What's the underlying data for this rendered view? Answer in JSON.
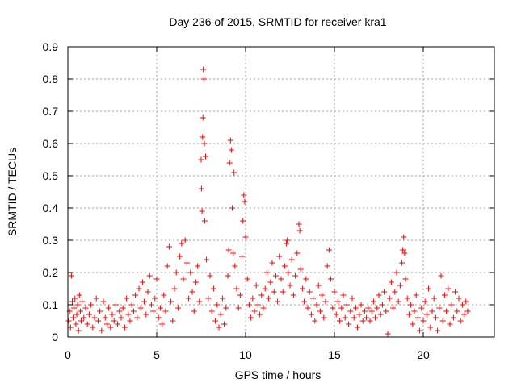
{
  "chart_data": {
    "type": "scatter",
    "title": "Day 236 of 2015, SRMTID for receiver kra1",
    "xlabel": "GPS time / hours",
    "ylabel": "SRMTID / TECUs",
    "xlim": [
      0,
      24
    ],
    "ylim": [
      0,
      0.9
    ],
    "xticks": [
      0,
      5,
      10,
      15,
      20
    ],
    "yticks": [
      0,
      0.1,
      0.2,
      0.3,
      0.4,
      0.5,
      0.6,
      0.7,
      0.8,
      0.9
    ],
    "xtick_labels": [
      "0",
      "5",
      "10",
      "15",
      "20"
    ],
    "ytick_labels": [
      "0",
      "0.1",
      "0.2",
      "0.3",
      "0.4",
      "0.5",
      "0.6",
      "0.7",
      "0.8",
      "0.9"
    ],
    "grid": true,
    "marker": "+",
    "color": "#ff0000",
    "series": [
      {
        "name": "kra1",
        "points": [
          [
            0.05,
            0.05
          ],
          [
            0.1,
            0.08
          ],
          [
            0.15,
            0.03
          ],
          [
            0.2,
            0.19
          ],
          [
            0.25,
            0.11
          ],
          [
            0.3,
            0.06
          ],
          [
            0.35,
            0.09
          ],
          [
            0.4,
            0.12
          ],
          [
            0.45,
            0.04
          ],
          [
            0.5,
            0.07
          ],
          [
            0.55,
            0.1
          ],
          [
            0.6,
            0.02
          ],
          [
            0.65,
            0.13
          ],
          [
            0.7,
            0.08
          ],
          [
            0.75,
            0.05
          ],
          [
            0.8,
            0.11
          ],
          [
            0.9,
            0.06
          ],
          [
            1.0,
            0.09
          ],
          [
            1.1,
            0.04
          ],
          [
            1.2,
            0.07
          ],
          [
            1.3,
            0.1
          ],
          [
            1.4,
            0.03
          ],
          [
            1.5,
            0.06
          ],
          [
            1.6,
            0.12
          ],
          [
            1.7,
            0.05
          ],
          [
            1.8,
            0.08
          ],
          [
            1.9,
            0.02
          ],
          [
            2.0,
            0.11
          ],
          [
            2.1,
            0.06
          ],
          [
            2.2,
            0.04
          ],
          [
            2.3,
            0.09
          ],
          [
            2.4,
            0.03
          ],
          [
            2.5,
            0.07
          ],
          [
            2.6,
            0.05
          ],
          [
            2.7,
            0.1
          ],
          [
            2.8,
            0.04
          ],
          [
            2.9,
            0.08
          ],
          [
            3.0,
            0.06
          ],
          [
            3.1,
            0.09
          ],
          [
            3.2,
            0.03
          ],
          [
            3.3,
            0.12
          ],
          [
            3.4,
            0.07
          ],
          [
            3.5,
            0.05
          ],
          [
            3.6,
            0.1
          ],
          [
            3.7,
            0.08
          ],
          [
            3.8,
            0.13
          ],
          [
            3.9,
            0.06
          ],
          [
            4.0,
            0.15
          ],
          [
            4.1,
            0.09
          ],
          [
            4.2,
            0.17
          ],
          [
            4.3,
            0.11
          ],
          [
            4.4,
            0.07
          ],
          [
            4.5,
            0.14
          ],
          [
            4.6,
            0.19
          ],
          [
            4.7,
            0.1
          ],
          [
            4.8,
            0.08
          ],
          [
            4.9,
            0.12
          ],
          [
            5.0,
            0.18
          ],
          [
            5.1,
            0.06
          ],
          [
            5.2,
            0.09
          ],
          [
            5.3,
            0.04
          ],
          [
            5.4,
            0.13
          ],
          [
            5.5,
            0.08
          ],
          [
            5.6,
            0.22
          ],
          [
            5.7,
            0.28
          ],
          [
            5.8,
            0.11
          ],
          [
            5.9,
            0.05
          ],
          [
            6.0,
            0.15
          ],
          [
            6.1,
            0.2
          ],
          [
            6.2,
            0.09
          ],
          [
            6.3,
            0.25
          ],
          [
            6.4,
            0.29
          ],
          [
            6.5,
            0.18
          ],
          [
            6.6,
            0.3
          ],
          [
            6.7,
            0.23
          ],
          [
            6.8,
            0.12
          ],
          [
            6.9,
            0.2
          ],
          [
            7.0,
            0.14
          ],
          [
            7.1,
            0.08
          ],
          [
            7.2,
            0.17
          ],
          [
            7.3,
            0.22
          ],
          [
            7.4,
            0.11
          ],
          [
            7.5,
            0.55
          ],
          [
            7.52,
            0.46
          ],
          [
            7.55,
            0.39
          ],
          [
            7.58,
            0.62
          ],
          [
            7.6,
            0.68
          ],
          [
            7.62,
            0.83
          ],
          [
            7.65,
            0.8
          ],
          [
            7.68,
            0.6
          ],
          [
            7.7,
            0.36
          ],
          [
            7.75,
            0.56
          ],
          [
            7.8,
            0.24
          ],
          [
            7.9,
            0.12
          ],
          [
            8.0,
            0.19
          ],
          [
            8.1,
            0.08
          ],
          [
            8.2,
            0.15
          ],
          [
            8.3,
            0.05
          ],
          [
            8.4,
            0.1
          ],
          [
            8.5,
            0.03
          ],
          [
            8.6,
            0.07
          ],
          [
            8.7,
            0.12
          ],
          [
            8.8,
            0.04
          ],
          [
            8.9,
            0.09
          ],
          [
            9.0,
            0.19
          ],
          [
            9.05,
            0.27
          ],
          [
            9.1,
            0.54
          ],
          [
            9.15,
            0.61
          ],
          [
            9.2,
            0.58
          ],
          [
            9.25,
            0.4
          ],
          [
            9.3,
            0.26
          ],
          [
            9.35,
            0.51
          ],
          [
            9.4,
            0.22
          ],
          [
            9.5,
            0.15
          ],
          [
            9.6,
            0.09
          ],
          [
            9.7,
            0.13
          ],
          [
            9.8,
            0.25
          ],
          [
            9.85,
            0.36
          ],
          [
            9.9,
            0.44
          ],
          [
            9.95,
            0.42
          ],
          [
            10.0,
            0.31
          ],
          [
            10.1,
            0.18
          ],
          [
            10.2,
            0.1
          ],
          [
            10.3,
            0.06
          ],
          [
            10.4,
            0.12
          ],
          [
            10.5,
            0.08
          ],
          [
            10.6,
            0.16
          ],
          [
            10.7,
            0.1
          ],
          [
            10.8,
            0.07
          ],
          [
            10.9,
            0.13
          ],
          [
            11.0,
            0.09
          ],
          [
            11.1,
            0.15
          ],
          [
            11.2,
            0.2
          ],
          [
            11.3,
            0.12
          ],
          [
            11.4,
            0.17
          ],
          [
            11.5,
            0.23
          ],
          [
            11.6,
            0.14
          ],
          [
            11.7,
            0.19
          ],
          [
            11.8,
            0.11
          ],
          [
            11.9,
            0.25
          ],
          [
            12.0,
            0.18
          ],
          [
            12.1,
            0.14
          ],
          [
            12.2,
            0.22
          ],
          [
            12.3,
            0.29
          ],
          [
            12.35,
            0.3
          ],
          [
            12.4,
            0.2
          ],
          [
            12.5,
            0.16
          ],
          [
            12.6,
            0.24
          ],
          [
            12.7,
            0.13
          ],
          [
            12.8,
            0.19
          ],
          [
            12.9,
            0.26
          ],
          [
            13.0,
            0.35
          ],
          [
            13.05,
            0.33
          ],
          [
            13.1,
            0.21
          ],
          [
            13.2,
            0.15
          ],
          [
            13.3,
            0.11
          ],
          [
            13.4,
            0.18
          ],
          [
            13.5,
            0.09
          ],
          [
            13.6,
            0.14
          ],
          [
            13.7,
            0.07
          ],
          [
            13.8,
            0.12
          ],
          [
            13.9,
            0.05
          ],
          [
            14.0,
            0.1
          ],
          [
            14.1,
            0.16
          ],
          [
            14.2,
            0.08
          ],
          [
            14.3,
            0.13
          ],
          [
            14.4,
            0.06
          ],
          [
            14.5,
            0.11
          ],
          [
            14.6,
            0.22
          ],
          [
            14.7,
            0.27
          ],
          [
            14.8,
            0.18
          ],
          [
            14.9,
            0.09
          ],
          [
            15.0,
            0.14
          ],
          [
            15.1,
            0.07
          ],
          [
            15.2,
            0.11
          ],
          [
            15.3,
            0.05
          ],
          [
            15.4,
            0.09
          ],
          [
            15.5,
            0.13
          ],
          [
            15.6,
            0.06
          ],
          [
            15.7,
            0.1
          ],
          [
            15.8,
            0.04
          ],
          [
            15.9,
            0.08
          ],
          [
            16.0,
            0.12
          ],
          [
            16.1,
            0.06
          ],
          [
            16.2,
            0.09
          ],
          [
            16.3,
            0.03
          ],
          [
            16.4,
            0.07
          ],
          [
            16.5,
            0.1
          ],
          [
            16.6,
            0.05
          ],
          [
            16.7,
            0.08
          ],
          [
            16.8,
            0.06
          ],
          [
            16.9,
            0.09
          ],
          [
            17.0,
            0.05
          ],
          [
            17.1,
            0.08
          ],
          [
            17.2,
            0.11
          ],
          [
            17.3,
            0.06
          ],
          [
            17.4,
            0.09
          ],
          [
            17.5,
            0.13
          ],
          [
            17.6,
            0.07
          ],
          [
            17.7,
            0.1
          ],
          [
            17.8,
            0.14
          ],
          [
            17.9,
            0.08
          ],
          [
            18.0,
            0.01
          ],
          [
            18.1,
            0.12
          ],
          [
            18.2,
            0.17
          ],
          [
            18.3,
            0.09
          ],
          [
            18.4,
            0.14
          ],
          [
            18.5,
            0.2
          ],
          [
            18.6,
            0.11
          ],
          [
            18.7,
            0.16
          ],
          [
            18.8,
            0.23
          ],
          [
            18.85,
            0.27
          ],
          [
            18.9,
            0.31
          ],
          [
            18.95,
            0.26
          ],
          [
            19.0,
            0.18
          ],
          [
            19.1,
            0.12
          ],
          [
            19.2,
            0.07
          ],
          [
            19.3,
            0.1
          ],
          [
            19.4,
            0.04
          ],
          [
            19.5,
            0.08
          ],
          [
            19.6,
            0.13
          ],
          [
            19.7,
            0.06
          ],
          [
            19.8,
            0.02
          ],
          [
            19.9,
            0.09
          ],
          [
            20.0,
            0.05
          ],
          [
            20.1,
            0.11
          ],
          [
            20.2,
            0.07
          ],
          [
            20.3,
            0.15
          ],
          [
            20.4,
            0.03
          ],
          [
            20.5,
            0.08
          ],
          [
            20.6,
            0.12
          ],
          [
            20.7,
            0.06
          ],
          [
            20.8,
            0.02
          ],
          [
            20.9,
            0.09
          ],
          [
            21.0,
            0.19
          ],
          [
            21.1,
            0.05
          ],
          [
            21.2,
            0.13
          ],
          [
            21.3,
            0.08
          ],
          [
            21.4,
            0.15
          ],
          [
            21.5,
            0.04
          ],
          [
            21.6,
            0.1
          ],
          [
            21.7,
            0.06
          ],
          [
            21.8,
            0.14
          ],
          [
            21.9,
            0.08
          ],
          [
            22.0,
            0.12
          ],
          [
            22.1,
            0.05
          ],
          [
            22.2,
            0.1
          ],
          [
            22.3,
            0.07
          ],
          [
            22.4,
            0.11
          ],
          [
            22.5,
            0.08
          ]
        ]
      }
    ]
  }
}
